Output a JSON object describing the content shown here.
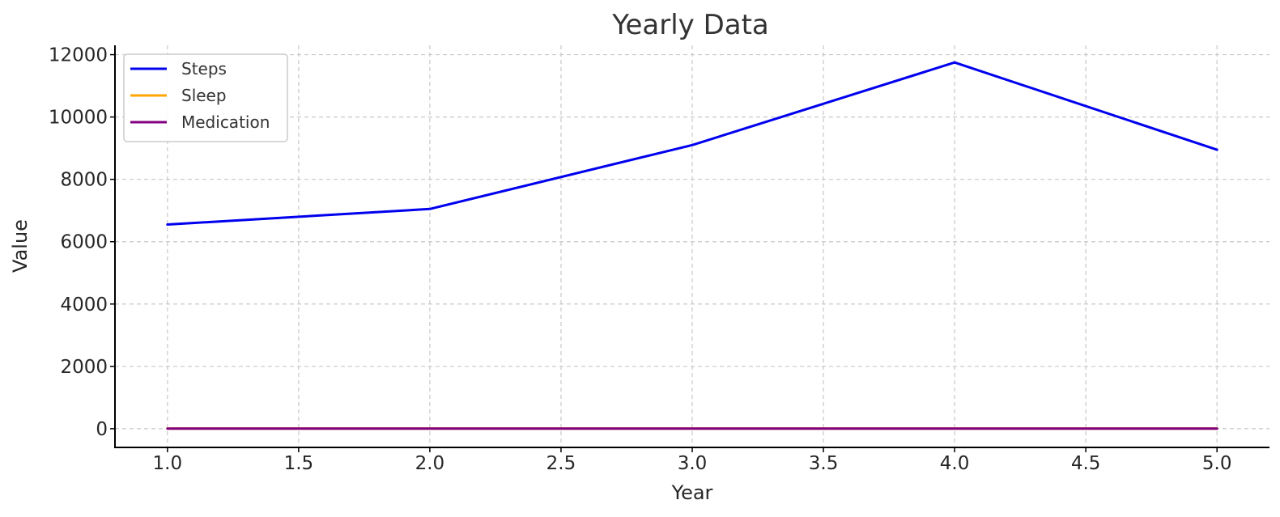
{
  "chart_data": {
    "type": "line",
    "title": "Yearly Data",
    "xlabel": "Year",
    "ylabel": "Value",
    "xlim": [
      0.8,
      5.2
    ],
    "ylim": [
      -600,
      12300
    ],
    "xticks": [
      1.0,
      1.5,
      2.0,
      2.5,
      3.0,
      3.5,
      4.0,
      4.5,
      5.0
    ],
    "xtick_labels": [
      "1.0",
      "1.5",
      "2.0",
      "2.5",
      "3.0",
      "3.5",
      "4.0",
      "4.5",
      "5.0"
    ],
    "yticks": [
      0,
      2000,
      4000,
      6000,
      8000,
      10000,
      12000
    ],
    "ytick_labels": [
      "0",
      "2000",
      "4000",
      "6000",
      "8000",
      "10000",
      "12000"
    ],
    "grid": true,
    "legend_position": "top-left",
    "x": [
      1,
      2,
      3,
      4,
      5
    ],
    "series": [
      {
        "name": "Steps",
        "color": "#0000ee",
        "values": [
          6550,
          7050,
          9100,
          11750,
          8950
        ]
      },
      {
        "name": "Sleep",
        "color": "#ffa500",
        "values": [
          7,
          7,
          7,
          7,
          7
        ]
      },
      {
        "name": "Medication",
        "color": "#800080",
        "values": [
          1,
          1,
          1,
          1,
          1
        ]
      }
    ]
  }
}
